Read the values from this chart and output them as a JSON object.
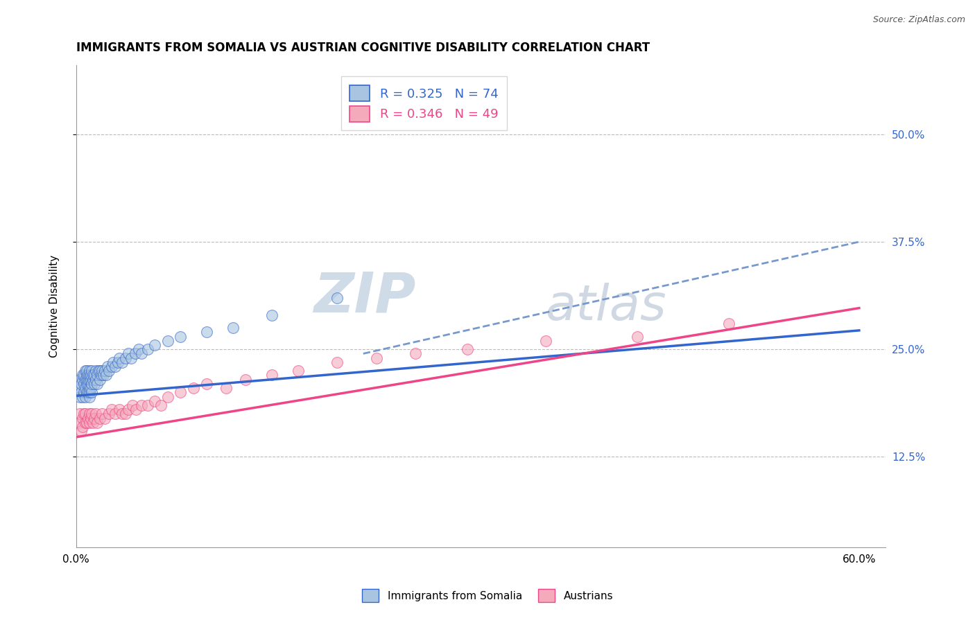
{
  "title": "IMMIGRANTS FROM SOMALIA VS AUSTRIAN COGNITIVE DISABILITY CORRELATION CHART",
  "source": "Source: ZipAtlas.com",
  "ylabel": "Cognitive Disability",
  "xlim": [
    0.0,
    0.62
  ],
  "ylim": [
    0.02,
    0.58
  ],
  "yticks": [
    0.125,
    0.25,
    0.375,
    0.5
  ],
  "ytick_labels": [
    "12.5%",
    "25.0%",
    "37.5%",
    "50.0%"
  ],
  "xtick_left_label": "0.0%",
  "xtick_right_label": "60.0%",
  "legend_r1": "R = 0.325",
  "legend_n1": "N = 74",
  "legend_r2": "R = 0.346",
  "legend_n2": "N = 49",
  "blue_color": "#A8C4E0",
  "pink_color": "#F4AABB",
  "blue_line_color": "#3366CC",
  "pink_line_color": "#EE4488",
  "dash_line_color": "#7799CC",
  "ytick_label_color": "#3366CC",
  "title_fontsize": 12,
  "axis_label_fontsize": 11,
  "tick_fontsize": 11,
  "legend_fontsize": 13,
  "blue_scatter_x": [
    0.002,
    0.003,
    0.003,
    0.004,
    0.004,
    0.005,
    0.005,
    0.005,
    0.006,
    0.006,
    0.006,
    0.007,
    0.007,
    0.007,
    0.007,
    0.008,
    0.008,
    0.008,
    0.008,
    0.008,
    0.009,
    0.009,
    0.009,
    0.009,
    0.01,
    0.01,
    0.01,
    0.01,
    0.01,
    0.01,
    0.011,
    0.011,
    0.011,
    0.012,
    0.012,
    0.012,
    0.013,
    0.013,
    0.014,
    0.014,
    0.015,
    0.015,
    0.016,
    0.016,
    0.017,
    0.018,
    0.018,
    0.019,
    0.02,
    0.021,
    0.022,
    0.023,
    0.024,
    0.025,
    0.027,
    0.028,
    0.03,
    0.032,
    0.033,
    0.035,
    0.038,
    0.04,
    0.042,
    0.045,
    0.048,
    0.05,
    0.055,
    0.06,
    0.07,
    0.08,
    0.1,
    0.12,
    0.15,
    0.2
  ],
  "blue_scatter_y": [
    0.205,
    0.195,
    0.215,
    0.2,
    0.21,
    0.215,
    0.195,
    0.22,
    0.21,
    0.2,
    0.22,
    0.195,
    0.205,
    0.215,
    0.225,
    0.2,
    0.21,
    0.215,
    0.22,
    0.225,
    0.2,
    0.21,
    0.215,
    0.22,
    0.195,
    0.2,
    0.205,
    0.215,
    0.22,
    0.225,
    0.205,
    0.215,
    0.22,
    0.2,
    0.21,
    0.225,
    0.215,
    0.22,
    0.21,
    0.22,
    0.215,
    0.225,
    0.21,
    0.22,
    0.225,
    0.215,
    0.225,
    0.22,
    0.225,
    0.22,
    0.225,
    0.22,
    0.23,
    0.225,
    0.23,
    0.235,
    0.23,
    0.235,
    0.24,
    0.235,
    0.24,
    0.245,
    0.24,
    0.245,
    0.25,
    0.245,
    0.25,
    0.255,
    0.26,
    0.265,
    0.27,
    0.275,
    0.29,
    0.31
  ],
  "pink_scatter_x": [
    0.002,
    0.003,
    0.004,
    0.005,
    0.005,
    0.006,
    0.007,
    0.007,
    0.008,
    0.009,
    0.01,
    0.01,
    0.011,
    0.012,
    0.013,
    0.014,
    0.015,
    0.016,
    0.018,
    0.02,
    0.022,
    0.025,
    0.027,
    0.03,
    0.033,
    0.035,
    0.038,
    0.04,
    0.043,
    0.046,
    0.05,
    0.055,
    0.06,
    0.065,
    0.07,
    0.08,
    0.09,
    0.1,
    0.115,
    0.13,
    0.15,
    0.17,
    0.2,
    0.23,
    0.26,
    0.3,
    0.36,
    0.43,
    0.5
  ],
  "pink_scatter_y": [
    0.165,
    0.175,
    0.155,
    0.17,
    0.16,
    0.175,
    0.165,
    0.175,
    0.165,
    0.17,
    0.165,
    0.175,
    0.17,
    0.175,
    0.165,
    0.17,
    0.175,
    0.165,
    0.17,
    0.175,
    0.17,
    0.175,
    0.18,
    0.175,
    0.18,
    0.175,
    0.175,
    0.18,
    0.185,
    0.18,
    0.185,
    0.185,
    0.19,
    0.185,
    0.195,
    0.2,
    0.205,
    0.21,
    0.205,
    0.215,
    0.22,
    0.225,
    0.235,
    0.24,
    0.245,
    0.25,
    0.26,
    0.265,
    0.28
  ],
  "blue_trend_start_x": 0.0,
  "blue_trend_start_y": 0.196,
  "blue_trend_end_x": 0.6,
  "blue_trend_end_y": 0.272,
  "pink_trend_start_x": 0.0,
  "pink_trend_start_y": 0.148,
  "pink_trend_end_x": 0.6,
  "pink_trend_end_y": 0.298,
  "dash_trend_start_x": 0.22,
  "dash_trend_start_y": 0.245,
  "dash_trend_end_x": 0.6,
  "dash_trend_end_y": 0.375,
  "watermark_zip_color": "#BBCCDD",
  "watermark_atlas_color": "#AABBCC",
  "background_color": "#FFFFFF",
  "grid_color": "#BBBBBB"
}
